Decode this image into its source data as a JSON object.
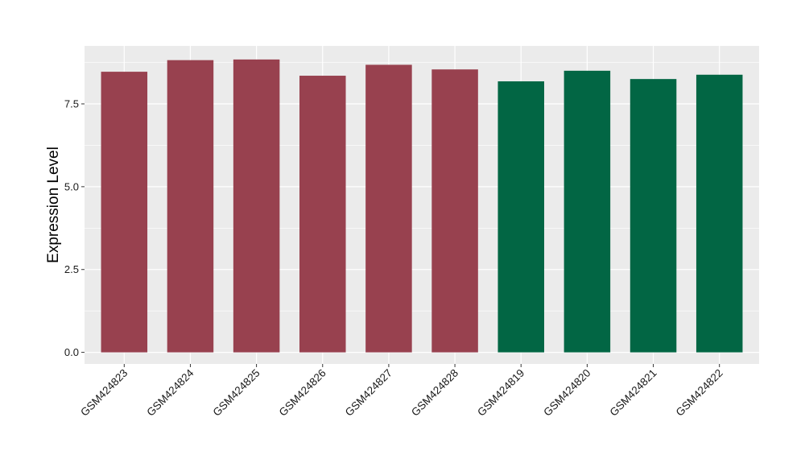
{
  "chart_data": {
    "type": "bar",
    "title": "",
    "xlabel": "",
    "ylabel": "Expression Level",
    "ylim": [
      -0.35,
      9.25
    ],
    "yticks": [
      0.0,
      2.5,
      5.0,
      7.5
    ],
    "ytick_labels": [
      "0.0",
      "2.5",
      "5.0",
      "7.5"
    ],
    "grid": true,
    "legend": "none",
    "categories": [
      "GSM424823",
      "GSM424824",
      "GSM424825",
      "GSM424826",
      "GSM424827",
      "GSM424828",
      "GSM424819",
      "GSM424820",
      "GSM424821",
      "GSM424822"
    ],
    "values": [
      8.47,
      8.82,
      8.84,
      8.35,
      8.68,
      8.54,
      8.18,
      8.5,
      8.25,
      8.38
    ],
    "bar_colors": [
      "#98414f",
      "#98414f",
      "#98414f",
      "#98414f",
      "#98414f",
      "#98414f",
      "#026644",
      "#026644",
      "#026644",
      "#026644"
    ],
    "panel_background": "#ebebeb",
    "grid_color": "#ffffff"
  }
}
